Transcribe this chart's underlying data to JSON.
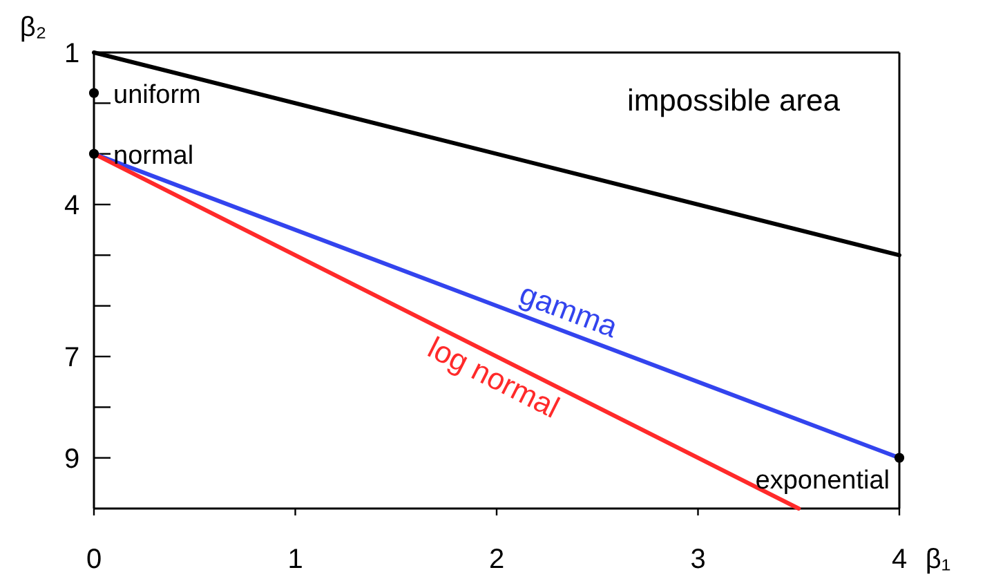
{
  "chart_data": {
    "type": "line",
    "xlabel": "β₁",
    "ylabel": "β₂",
    "xlim": [
      0,
      4
    ],
    "ylim": [
      10,
      1
    ],
    "xticks": [
      0,
      1,
      2,
      3,
      4
    ],
    "yticks": [
      1,
      {
        "value": 2,
        "label": null
      },
      {
        "value": 3,
        "label": null
      },
      4,
      {
        "value": 5,
        "label": null
      },
      {
        "value": 6,
        "label": null
      },
      7,
      {
        "value": 8,
        "label": null
      },
      9
    ],
    "series": [
      {
        "color": "#000000",
        "x": [
          0,
          4
        ],
        "values": [
          1,
          5
        ]
      },
      {
        "name": "gamma",
        "color": "#3344ee",
        "x": [
          0,
          4
        ],
        "values": [
          3,
          9
        ]
      },
      {
        "name": "log normal",
        "color": "#ff2a2a",
        "x": [
          0,
          3.5
        ],
        "values": [
          3,
          10
        ]
      },
      {
        "type": "scatter",
        "marker": "circle",
        "name": "uniform",
        "color": "#000000",
        "x": [
          0
        ],
        "values": [
          1.8
        ]
      },
      {
        "type": "scatter",
        "marker": "circle",
        "name": "normal",
        "color": "#000000",
        "x": [
          0
        ],
        "values": [
          3
        ]
      },
      {
        "type": "scatter",
        "marker": "circle",
        "name": "exponential",
        "color": "#000000",
        "x": [
          4
        ],
        "values": [
          9
        ]
      }
    ],
    "ref_lines": [
      {
        "axis": "y",
        "value": 1
      },
      {
        "axis": "x",
        "value": 4
      }
    ],
    "annotations": [
      "impossible area"
    ],
    "grid": false
  }
}
